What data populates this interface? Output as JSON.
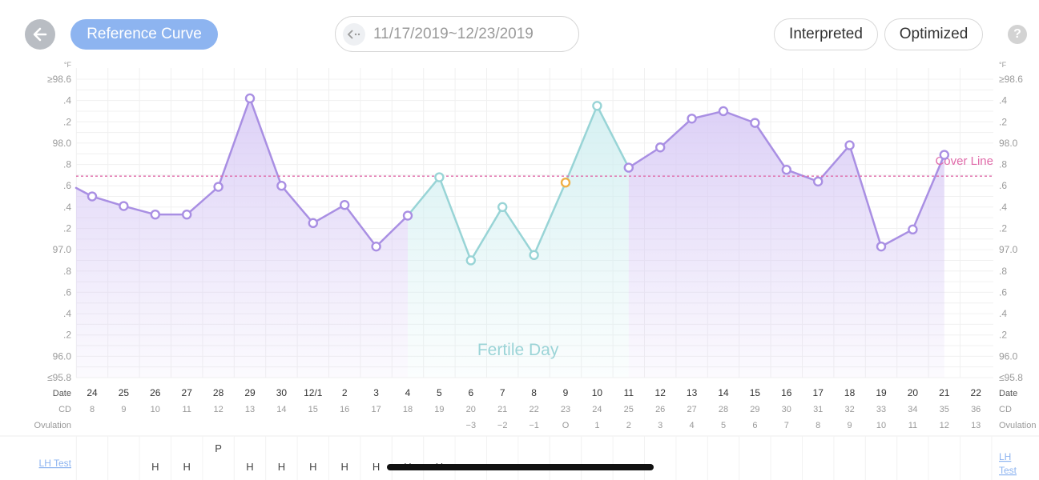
{
  "header": {
    "back_icon": "arrow-left-icon",
    "reference_label": "Reference Curve",
    "date_range": "11/17/2019~12/23/2019",
    "range_icon": "chevron-left-icon",
    "interpreted_label": "Interpreted",
    "optimized_label": "Optimized",
    "help_icon": "question-icon",
    "help_text": "?"
  },
  "colors": {
    "accent": "#8db4f0",
    "line_purple": "#a98fe3",
    "line_teal": "#98d4d6",
    "fill_purple": "#d7c9f5",
    "fill_teal": "#cfeef0",
    "ovulation_point": "#f0b048",
    "cover_line": "#e06aa9"
  },
  "chart_data": {
    "type": "line",
    "unit": "°F",
    "ylim": [
      95.8,
      98.6
    ],
    "y_tick_labels": [
      "≥98.6",
      ".4",
      ".2",
      "98.0",
      ".8",
      ".6",
      ".4",
      ".2",
      "97.0",
      ".8",
      ".6",
      ".4",
      ".2",
      "96.0",
      "≤95.8"
    ],
    "x_labels": [
      "24",
      "25",
      "26",
      "27",
      "28",
      "29",
      "30",
      "12/1",
      "2",
      "3",
      "4",
      "5",
      "6",
      "7",
      "8",
      "9",
      "10",
      "11",
      "12",
      "13",
      "14",
      "15",
      "16",
      "17",
      "18",
      "19",
      "20",
      "21",
      "22"
    ],
    "cycle_days": [
      "8",
      "9",
      "10",
      "11",
      "12",
      "13",
      "14",
      "15",
      "16",
      "17",
      "18",
      "19",
      "20",
      "21",
      "22",
      "23",
      "24",
      "25",
      "26",
      "27",
      "28",
      "29",
      "30",
      "31",
      "32",
      "33",
      "34",
      "35",
      "36"
    ],
    "ovulation_days": [
      "",
      "",
      "",
      "",
      "",
      "",
      "",
      "",
      "",
      "",
      "",
      "",
      "−3",
      "−2",
      "−1",
      "O",
      "1",
      "2",
      "3",
      "4",
      "5",
      "6",
      "7",
      "8",
      "9",
      "10",
      "11",
      "12",
      "13"
    ],
    "temperatures": [
      97.5,
      97.41,
      97.33,
      97.33,
      97.59,
      98.42,
      97.6,
      97.25,
      97.42,
      97.03,
      97.32,
      97.68,
      96.9,
      97.4,
      96.95,
      97.63,
      98.35,
      97.77,
      97.96,
      98.23,
      98.3,
      98.19,
      97.75,
      97.64,
      97.98,
      97.03,
      97.19,
      97.89,
      null
    ],
    "leading_value": 97.58,
    "fertile_range": [
      "4",
      "11"
    ],
    "ovulation_day": "9",
    "cover_line": 97.69,
    "cover_line_label": "Cover Line",
    "fertile_label": "Fertile Day",
    "row_labels": {
      "date": "Date",
      "cd": "CD",
      "ovulation": "Ovulation",
      "lh_test": "LH Test"
    },
    "lh_results": [
      "",
      "",
      "H",
      "H",
      "P",
      "H",
      "H",
      "H",
      "H",
      "H",
      "H",
      "H",
      "",
      "",
      "",
      "",
      "",
      "",
      "",
      "",
      "",
      "",
      "",
      "",
      "",
      "",
      "",
      "",
      ""
    ]
  }
}
